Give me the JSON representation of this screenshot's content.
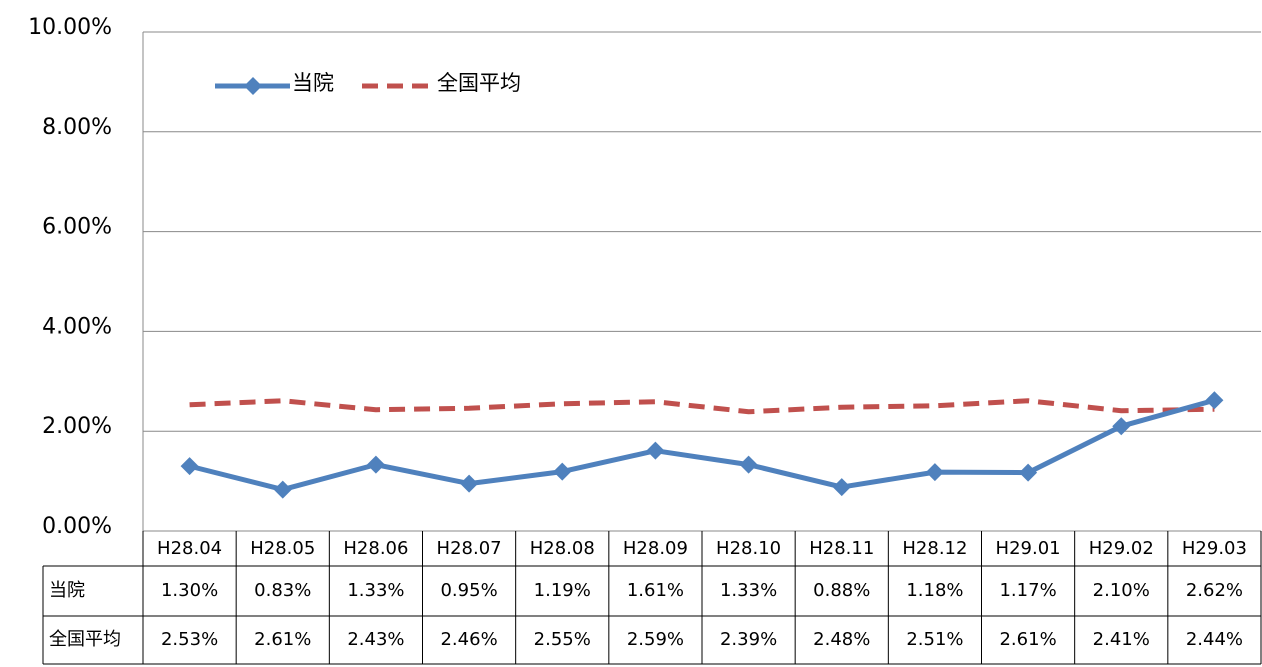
{
  "chart_data": {
    "type": "line",
    "categories": [
      "H28.04",
      "H28.05",
      "H28.06",
      "H28.07",
      "H28.08",
      "H28.09",
      "H28.10",
      "H28.11",
      "H28.12",
      "H29.01",
      "H29.02",
      "H29.03"
    ],
    "series": [
      {
        "name": "当院",
        "color": "#4f81bd",
        "values": [
          1.3,
          0.83,
          1.33,
          0.95,
          1.19,
          1.61,
          1.33,
          0.88,
          1.18,
          1.17,
          2.1,
          2.62
        ],
        "value_labels": [
          "1.30%",
          "0.83%",
          "1.33%",
          "0.95%",
          "1.19%",
          "1.61%",
          "1.33%",
          "0.88%",
          "1.18%",
          "1.17%",
          "2.10%",
          "2.62%"
        ]
      },
      {
        "name": "全国平均",
        "color": "#c0504d",
        "dashed": true,
        "values": [
          2.53,
          2.61,
          2.43,
          2.46,
          2.55,
          2.59,
          2.39,
          2.48,
          2.51,
          2.61,
          2.41,
          2.44
        ],
        "value_labels": [
          "2.53%",
          "2.61%",
          "2.43%",
          "2.46%",
          "2.55%",
          "2.59%",
          "2.39%",
          "2.48%",
          "2.51%",
          "2.61%",
          "2.41%",
          "2.44%"
        ]
      }
    ],
    "ylim": [
      0,
      10
    ],
    "yticks": [
      {
        "value": 0,
        "label": "0.00%"
      },
      {
        "value": 2,
        "label": "2.00%"
      },
      {
        "value": 4,
        "label": "4.00%"
      },
      {
        "value": 6,
        "label": "6.00%"
      },
      {
        "value": 8,
        "label": "8.00%"
      },
      {
        "value": 10,
        "label": "10.00%"
      }
    ],
    "grid": true,
    "legend": "top-left"
  }
}
